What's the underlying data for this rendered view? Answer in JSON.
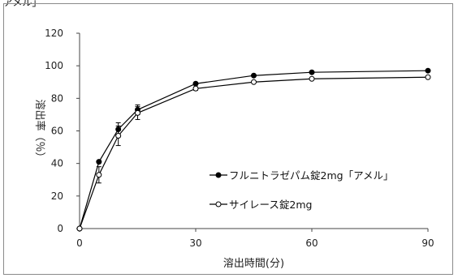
{
  "header_text": "アメル」",
  "chart_data": {
    "type": "line",
    "xlabel": "溶出時間(分)",
    "ylabel": "溶出率（％）",
    "xlim": [
      0,
      90
    ],
    "ylim": [
      0,
      120
    ],
    "xticks": [
      0,
      30,
      60,
      90
    ],
    "yticks": [
      0,
      20,
      40,
      60,
      80,
      100,
      120
    ],
    "grid": false,
    "legend_position": "lower-right",
    "series": [
      {
        "name": "フルニトラゼパム錠2mg「アメル」",
        "marker": "filled-circle",
        "color": "#000000",
        "x": [
          0,
          5,
          10,
          15,
          30,
          45,
          60,
          90
        ],
        "y": [
          0,
          41,
          61,
          73,
          89,
          94,
          96,
          97
        ],
        "err": [
          0,
          0,
          4,
          3,
          0,
          0,
          0,
          0
        ]
      },
      {
        "name": "サイレース錠2mg",
        "marker": "open-circle",
        "color": "#000000",
        "x": [
          0,
          5,
          10,
          15,
          30,
          45,
          60,
          90
        ],
        "y": [
          0,
          33,
          57,
          71,
          86,
          90,
          92,
          93
        ],
        "err": [
          0,
          5,
          6,
          4,
          1,
          0,
          0,
          0
        ]
      }
    ]
  }
}
